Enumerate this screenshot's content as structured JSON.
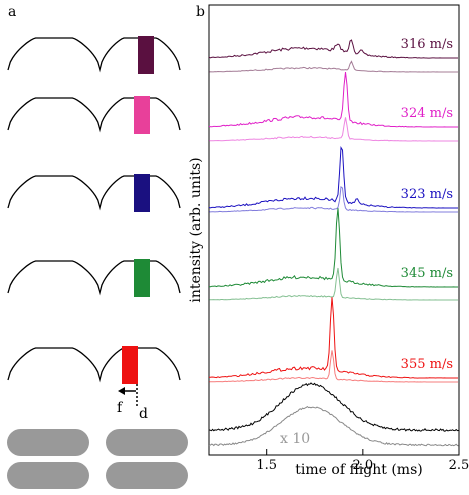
{
  "panels": {
    "a": {
      "label": "a",
      "annotations": {
        "f": "f",
        "d": "d"
      }
    },
    "b": {
      "label": "b"
    }
  },
  "pulse_rows": [
    {
      "color": "#5a1040"
    },
    {
      "color": "#e8409a"
    },
    {
      "color": "#1a1080"
    },
    {
      "color": "#1e8a36"
    },
    {
      "color": "#ee1111"
    }
  ],
  "chart_data": {
    "type": "line",
    "xlabel": "time of flight (ms)",
    "ylabel": "intensity (arb. units)",
    "xlim": [
      1.2,
      2.5
    ],
    "x_ticks": [
      1.5,
      2.0,
      2.5
    ],
    "x_tick_labels": [
      "1.5",
      "2.0",
      "2.5"
    ],
    "series": [
      {
        "label": "316 m/s",
        "color": "#5a1040",
        "peak_tof_ms": 1.94
      },
      {
        "label": "324 m/s",
        "color": "#e020c8",
        "peak_tof_ms": 1.91
      },
      {
        "label": "323 m/s",
        "color": "#1a10c0",
        "peak_tof_ms": 1.89
      },
      {
        "label": "345 m/s",
        "color": "#1e8a36",
        "peak_tof_ms": 1.87
      },
      {
        "label": "355 m/s",
        "color": "#ee1111",
        "peak_tof_ms": 1.84
      },
      {
        "label": "",
        "color": "#000000",
        "peak_tof_ms": 1.73
      }
    ],
    "scale_annotation": "x 10"
  }
}
